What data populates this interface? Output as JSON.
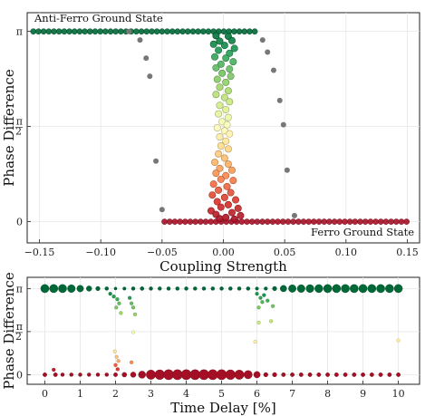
{
  "chart_data": [
    {
      "type": "scatter",
      "xlabel": "Coupling Strength",
      "ylabel": "Phase Difference",
      "xlim": [
        -0.16,
        0.16
      ],
      "ylim": [
        -0.35,
        3.45
      ],
      "grid": true,
      "xticks": [
        {
          "v": -0.15,
          "label": "−0.15"
        },
        {
          "v": -0.1,
          "label": "−0.10"
        },
        {
          "v": -0.05,
          "label": "−0.05"
        },
        {
          "v": 0.0,
          "label": "0.00"
        },
        {
          "v": 0.05,
          "label": "0.05"
        },
        {
          "v": 0.1,
          "label": "0.10"
        },
        {
          "v": 0.15,
          "label": "0.15"
        }
      ],
      "yticks": [
        {
          "v": 0,
          "label": "0"
        },
        {
          "v": 1.5708,
          "label": "π/2"
        },
        {
          "v": 3.1416,
          "label": "π"
        }
      ],
      "annotations": [
        {
          "text": "Anti-Ferro Ground State",
          "position": "top-left"
        },
        {
          "text": "Ferro Ground State",
          "position": "bottom-right"
        }
      ],
      "series": [
        {
          "color": "#777777",
          "points": [
            [
              -0.077,
              3.14
            ],
            [
              -0.068,
              3.0
            ],
            [
              -0.063,
              2.7
            ],
            [
              -0.06,
              2.4
            ],
            [
              -0.055,
              1.0
            ],
            [
              -0.05,
              0.2
            ],
            [
              0.032,
              3.0
            ],
            [
              0.036,
              2.8
            ],
            [
              0.041,
              2.5
            ],
            [
              0.046,
              2.0
            ],
            [
              0.049,
              1.6
            ],
            [
              0.052,
              0.85
            ],
            [
              0.058,
              0.1
            ]
          ]
        },
        {
          "color_scale": [
            "#a50f26",
            "#d73027",
            "#f46d43",
            "#fdae61",
            "#fee08b",
            "#ffffbf",
            "#d9ef8b",
            "#a6d96a",
            "#66bd63",
            "#1a9850",
            "#006837"
          ],
          "flat_branches": [
            {
              "y": 3.14,
              "x_from": -0.155,
              "x_to": 0.028,
              "step": 0.0042
            },
            {
              "y": 0.0,
              "x_from": -0.048,
              "x_to": 0.153,
              "step": 0.0042
            }
          ],
          "transition_points": [
            [
              -0.006,
              3.07
            ],
            [
              0.004,
              3.06
            ],
            [
              -0.003,
              2.98
            ],
            [
              0.007,
              2.99
            ],
            [
              -0.008,
              2.93
            ],
            [
              0.001,
              2.91
            ],
            [
              0.009,
              2.86
            ],
            [
              -0.004,
              2.83
            ],
            [
              0.005,
              2.78
            ],
            [
              -0.007,
              2.72
            ],
            [
              0.002,
              2.7
            ],
            [
              0.008,
              2.64
            ],
            [
              -0.002,
              2.6
            ],
            [
              -0.006,
              2.54
            ],
            [
              0.005,
              2.52
            ],
            [
              -0.001,
              2.45
            ],
            [
              0.006,
              2.4
            ],
            [
              -0.005,
              2.35
            ],
            [
              0.002,
              2.3
            ],
            [
              -0.003,
              2.22
            ],
            [
              0.004,
              2.16
            ],
            [
              -0.006,
              2.1
            ],
            [
              0.001,
              2.05
            ],
            [
              0.005,
              1.98
            ],
            [
              -0.003,
              1.92
            ],
            [
              0.002,
              1.85
            ],
            [
              -0.004,
              1.78
            ],
            [
              0.004,
              1.72
            ],
            [
              -0.001,
              1.65
            ],
            [
              0.003,
              1.6
            ],
            [
              -0.005,
              1.55
            ],
            [
              0.001,
              1.5
            ],
            [
              0.005,
              1.45
            ],
            [
              -0.003,
              1.4
            ],
            [
              0.002,
              1.33
            ],
            [
              -0.002,
              1.25
            ],
            [
              0.004,
              1.2
            ],
            [
              -0.004,
              1.12
            ],
            [
              0.001,
              1.05
            ],
            [
              -0.007,
              0.98
            ],
            [
              0.004,
              0.95
            ],
            [
              -0.003,
              0.88
            ],
            [
              0.007,
              0.85
            ],
            [
              -0.006,
              0.8
            ],
            [
              0.002,
              0.76
            ],
            [
              -0.002,
              0.7
            ],
            [
              0.008,
              0.68
            ],
            [
              -0.008,
              0.62
            ],
            [
              0.003,
              0.58
            ],
            [
              -0.004,
              0.52
            ],
            [
              0.006,
              0.48
            ],
            [
              -0.009,
              0.44
            ],
            [
              0.001,
              0.4
            ],
            [
              0.01,
              0.36
            ],
            [
              -0.005,
              0.33
            ],
            [
              0.004,
              0.28
            ],
            [
              -0.002,
              0.24
            ],
            [
              0.012,
              0.22
            ],
            [
              -0.01,
              0.18
            ],
            [
              0.007,
              0.15
            ],
            [
              -0.006,
              0.12
            ],
            [
              0.014,
              0.1
            ],
            [
              0.002,
              0.07
            ],
            [
              -0.003,
              0.05
            ],
            [
              0.009,
              0.04
            ]
          ]
        }
      ]
    },
    {
      "type": "scatter",
      "xlabel": "Time Delay [%]",
      "ylabel": "Phase Difference",
      "xlim": [
        -0.5,
        10.6
      ],
      "ylim": [
        -0.35,
        3.55
      ],
      "grid": true,
      "xticks": [
        {
          "v": 0,
          "label": "0"
        },
        {
          "v": 1,
          "label": "1"
        },
        {
          "v": 2,
          "label": "2"
        },
        {
          "v": 3,
          "label": "3"
        },
        {
          "v": 4,
          "label": "4"
        },
        {
          "v": 5,
          "label": "5"
        },
        {
          "v": 6,
          "label": "6"
        },
        {
          "v": 7,
          "label": "7"
        },
        {
          "v": 8,
          "label": "8"
        },
        {
          "v": 9,
          "label": "9"
        },
        {
          "v": 10,
          "label": "10"
        }
      ],
      "yticks": [
        {
          "v": 0,
          "label": "0"
        },
        {
          "v": 1.5708,
          "label": "π/2"
        },
        {
          "v": 3.1416,
          "label": "π"
        }
      ],
      "top_branch": {
        "y": 3.14,
        "points": [
          [
            0,
            4.6
          ],
          [
            0.25,
            4.6
          ],
          [
            0.5,
            4.6
          ],
          [
            0.75,
            4.3
          ],
          [
            1,
            3.7
          ],
          [
            1.25,
            3.0
          ],
          [
            1.5,
            2.4
          ],
          [
            1.75,
            2.0
          ],
          [
            2,
            1.6
          ],
          [
            2.25,
            1.8
          ],
          [
            2.5,
            2.0
          ],
          [
            2.75,
            2.1
          ],
          [
            3,
            2.0
          ],
          [
            3.25,
            2.0
          ],
          [
            3.5,
            2.0
          ],
          [
            3.75,
            2.0
          ],
          [
            4,
            2.0
          ],
          [
            4.25,
            2.0
          ],
          [
            4.5,
            2.0
          ],
          [
            4.75,
            2.0
          ],
          [
            5,
            2.0
          ],
          [
            5.25,
            2.0
          ],
          [
            5.5,
            2.0
          ],
          [
            5.75,
            2.0
          ],
          [
            6,
            1.8
          ],
          [
            6.25,
            1.9
          ],
          [
            6.5,
            2.4
          ],
          [
            6.75,
            3.6
          ],
          [
            7,
            4.2
          ],
          [
            7.25,
            4.3
          ],
          [
            7.5,
            4.4
          ],
          [
            7.75,
            4.5
          ],
          [
            8,
            4.6
          ],
          [
            8.25,
            4.6
          ],
          [
            8.5,
            4.6
          ],
          [
            8.75,
            4.6
          ],
          [
            9,
            4.6
          ],
          [
            9.25,
            4.6
          ],
          [
            9.5,
            4.6
          ],
          [
            9.75,
            4.6
          ],
          [
            10,
            4.6
          ]
        ]
      },
      "bottom_branch": {
        "y": 0,
        "points": [
          [
            0,
            2.2
          ],
          [
            0.3,
            2.2
          ],
          [
            0.5,
            2.0
          ],
          [
            0.75,
            2.0
          ],
          [
            1,
            2.0
          ],
          [
            1.25,
            2.0
          ],
          [
            1.5,
            2.0
          ],
          [
            1.75,
            2.0
          ],
          [
            2,
            2.2
          ],
          [
            2.25,
            2.6
          ],
          [
            2.5,
            3.0
          ],
          [
            2.75,
            4.0
          ],
          [
            3,
            5.2
          ],
          [
            3.25,
            5.4
          ],
          [
            3.5,
            5.6
          ],
          [
            3.75,
            5.6
          ],
          [
            4,
            5.6
          ],
          [
            4.25,
            5.6
          ],
          [
            4.5,
            5.6
          ],
          [
            4.75,
            5.6
          ],
          [
            5,
            5.6
          ],
          [
            5.25,
            5.4
          ],
          [
            5.5,
            5.2
          ],
          [
            5.75,
            4.6
          ],
          [
            6,
            3.6
          ],
          [
            6.25,
            2.4
          ],
          [
            6.5,
            2.4
          ],
          [
            6.75,
            2.2
          ],
          [
            7,
            2.2
          ],
          [
            7.25,
            2.2
          ],
          [
            7.5,
            2.2
          ],
          [
            7.75,
            2.2
          ],
          [
            8,
            2.2
          ],
          [
            8.25,
            2.2
          ],
          [
            8.5,
            2.2
          ],
          [
            8.75,
            2.2
          ],
          [
            9,
            2.2
          ],
          [
            9.25,
            2.2
          ],
          [
            9.5,
            2.2
          ],
          [
            9.75,
            2.2
          ],
          [
            10,
            2.2
          ]
        ]
      },
      "scattered": [
        [
          1.85,
          2.95,
          0.92
        ],
        [
          1.95,
          2.85,
          0.88
        ],
        [
          2.05,
          2.75,
          0.85
        ],
        [
          2.1,
          2.6,
          0.8
        ],
        [
          2.02,
          2.45,
          0.76
        ],
        [
          2.15,
          2.25,
          0.7
        ],
        [
          1.98,
          0.85,
          0.42
        ],
        [
          2.03,
          0.65,
          0.35
        ],
        [
          2.08,
          0.5,
          0.3
        ],
        [
          2.0,
          0.35,
          0.18
        ],
        [
          2.06,
          0.2,
          0.12
        ],
        [
          2.4,
          2.8,
          0.88
        ],
        [
          2.45,
          2.6,
          0.8
        ],
        [
          2.5,
          2.45,
          0.78
        ],
        [
          2.55,
          2.2,
          0.72
        ],
        [
          2.5,
          1.55,
          0.52
        ],
        [
          2.45,
          0.45,
          0.25
        ],
        [
          0.25,
          0.18,
          0.05
        ],
        [
          6.0,
          2.95,
          0.9
        ],
        [
          6.1,
          2.8,
          0.86
        ],
        [
          6.15,
          2.65,
          0.82
        ],
        [
          6.05,
          2.45,
          0.76
        ],
        [
          6.3,
          2.7,
          0.84
        ],
        [
          6.45,
          2.5,
          0.78
        ],
        [
          6.4,
          1.95,
          0.64
        ],
        [
          6.05,
          1.9,
          0.62
        ],
        [
          5.95,
          1.2,
          0.45
        ],
        [
          6.2,
          2.9,
          0.9
        ],
        [
          10.0,
          1.25,
          0.45
        ]
      ]
    }
  ]
}
